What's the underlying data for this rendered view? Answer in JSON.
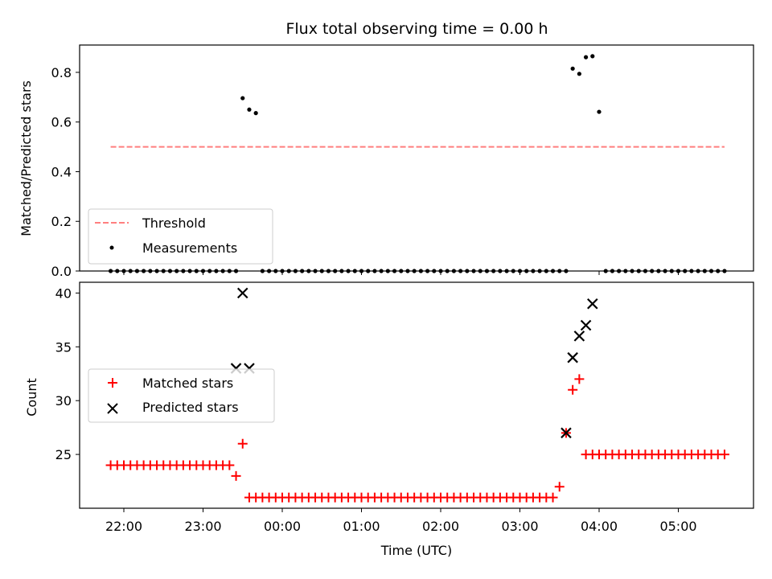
{
  "chart_data": [
    {
      "type": "scatter",
      "title": "Flux total observing time = 0.00 h",
      "xlabel": "",
      "ylabel": "Matched/Predicted stars",
      "ylim": [
        0,
        0.91
      ],
      "yticks": [
        "0.0",
        "0.2",
        "0.4",
        "0.6",
        "0.8"
      ],
      "ytick_values": [
        0,
        0.2,
        0.4,
        0.6,
        0.8
      ],
      "legend_position": "lower-left",
      "threshold": {
        "name": "Threshold",
        "value": 0.5,
        "color": "#ff7f7f"
      },
      "series": [
        {
          "name": "Measurements",
          "color": "#000000",
          "marker": "dot",
          "x": [
            "21:50",
            "21:55",
            "22:00",
            "22:05",
            "22:10",
            "22:15",
            "22:20",
            "22:25",
            "22:30",
            "22:35",
            "22:40",
            "22:45",
            "22:50",
            "22:55",
            "23:00",
            "23:05",
            "23:10",
            "23:15",
            "23:20",
            "23:25",
            "23:30",
            "23:35",
            "23:40",
            "23:45",
            "23:50",
            "23:55",
            "00:00",
            "00:05",
            "00:10",
            "00:15",
            "00:20",
            "00:25",
            "00:30",
            "00:35",
            "00:40",
            "00:45",
            "00:50",
            "00:55",
            "01:00",
            "01:05",
            "01:10",
            "01:15",
            "01:20",
            "01:25",
            "01:30",
            "01:35",
            "01:40",
            "01:45",
            "01:50",
            "01:55",
            "02:00",
            "02:05",
            "02:10",
            "02:15",
            "02:20",
            "02:25",
            "02:30",
            "02:35",
            "02:40",
            "02:45",
            "02:50",
            "02:55",
            "03:00",
            "03:05",
            "03:10",
            "03:15",
            "03:20",
            "03:25",
            "03:30",
            "03:35",
            "03:40",
            "03:45",
            "03:50",
            "03:55",
            "04:00",
            "04:05",
            "04:10",
            "04:15",
            "04:20",
            "04:25",
            "04:30",
            "04:35",
            "04:40",
            "04:45",
            "04:50",
            "04:55",
            "05:00",
            "05:05",
            "05:10",
            "05:15",
            "05:20",
            "05:25",
            "05:30",
            "05:35"
          ],
          "y": [
            0,
            0,
            0,
            0,
            0,
            0,
            0,
            0,
            0,
            0,
            0,
            0,
            0,
            0,
            0,
            0,
            0,
            0,
            0,
            0,
            0.696,
            0.65,
            0.636,
            0,
            0,
            0,
            0,
            0,
            0,
            0,
            0,
            0,
            0,
            0,
            0,
            0,
            0,
            0,
            0,
            0,
            0,
            0,
            0,
            0,
            0,
            0,
            0,
            0,
            0,
            0,
            0,
            0,
            0,
            0,
            0,
            0,
            0,
            0,
            0,
            0,
            0,
            0,
            0,
            0,
            0,
            0,
            0,
            0,
            0,
            0,
            0.815,
            0.794,
            0.861,
            0.865,
            0.641,
            0,
            0,
            0,
            0,
            0,
            0,
            0,
            0,
            0,
            0,
            0,
            0,
            0,
            0,
            0,
            0,
            0,
            0,
            0
          ]
        }
      ]
    },
    {
      "type": "scatter",
      "title": "",
      "xlabel": "Time (UTC)",
      "ylabel": "Count",
      "ylim": [
        20,
        41
      ],
      "yticks": [
        "25",
        "30",
        "35",
        "40"
      ],
      "ytick_values": [
        25,
        30,
        35,
        40
      ],
      "xticks": [
        "22:00",
        "23:00",
        "00:00",
        "01:00",
        "02:00",
        "03:00",
        "04:00",
        "05:00"
      ],
      "legend_position": "center-left",
      "series": [
        {
          "name": "Matched stars",
          "color": "#ff0000",
          "marker": "plus",
          "x": [
            "21:50",
            "21:55",
            "22:00",
            "22:05",
            "22:10",
            "22:15",
            "22:20",
            "22:25",
            "22:30",
            "22:35",
            "22:40",
            "22:45",
            "22:50",
            "22:55",
            "23:00",
            "23:05",
            "23:10",
            "23:15",
            "23:20",
            "23:25",
            "23:30",
            "23:35",
            "23:40",
            "23:45",
            "23:50",
            "23:55",
            "00:00",
            "00:05",
            "00:10",
            "00:15",
            "00:20",
            "00:25",
            "00:30",
            "00:35",
            "00:40",
            "00:45",
            "00:50",
            "00:55",
            "01:00",
            "01:05",
            "01:10",
            "01:15",
            "01:20",
            "01:25",
            "01:30",
            "01:35",
            "01:40",
            "01:45",
            "01:50",
            "01:55",
            "02:00",
            "02:05",
            "02:10",
            "02:15",
            "02:20",
            "02:25",
            "02:30",
            "02:35",
            "02:40",
            "02:45",
            "02:50",
            "02:55",
            "03:00",
            "03:05",
            "03:10",
            "03:15",
            "03:20",
            "03:25",
            "03:30",
            "03:35",
            "03:40",
            "03:45",
            "03:50",
            "03:55",
            "04:00",
            "04:05",
            "04:10",
            "04:15",
            "04:20",
            "04:25",
            "04:30",
            "04:35",
            "04:40",
            "04:45",
            "04:50",
            "04:55",
            "05:00",
            "05:05",
            "05:10",
            "05:15",
            "05:20",
            "05:25",
            "05:30",
            "05:35"
          ],
          "y": [
            24,
            24,
            24,
            24,
            24,
            24,
            24,
            24,
            24,
            24,
            24,
            24,
            24,
            24,
            24,
            24,
            24,
            24,
            24,
            23,
            26,
            21,
            21,
            21,
            21,
            21,
            21,
            21,
            21,
            21,
            21,
            21,
            21,
            21,
            21,
            21,
            21,
            21,
            21,
            21,
            21,
            21,
            21,
            21,
            21,
            21,
            21,
            21,
            21,
            21,
            21,
            21,
            21,
            21,
            21,
            21,
            21,
            21,
            21,
            21,
            21,
            21,
            21,
            21,
            21,
            21,
            21,
            21,
            22,
            27,
            31,
            32,
            25,
            25,
            25,
            25,
            25,
            25,
            25,
            25,
            25,
            25,
            25,
            25,
            25,
            25,
            25,
            25,
            25,
            25,
            25,
            25,
            25,
            25
          ]
        },
        {
          "name": "Predicted stars",
          "color": "#000000",
          "marker": "x",
          "x": [
            "23:25",
            "23:30",
            "23:35",
            "03:35",
            "03:40",
            "03:45",
            "03:50",
            "03:55"
          ],
          "y": [
            33,
            40,
            33,
            27,
            34,
            36,
            37,
            39
          ]
        }
      ]
    }
  ]
}
